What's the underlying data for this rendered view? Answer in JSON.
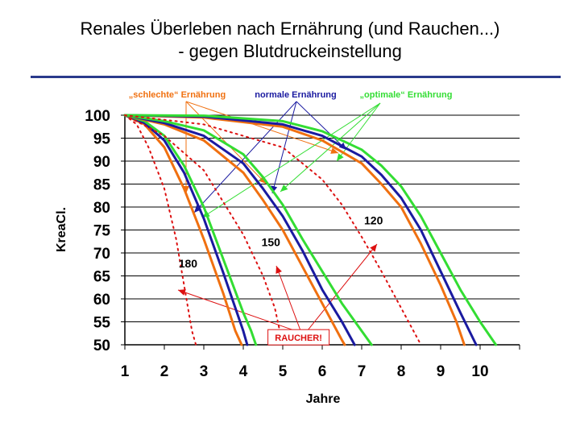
{
  "slide": {
    "title_line1": "Renales Überleben nach Ernährung (und Rauchen...)",
    "title_line2": "- gegen Blutdruckeinstellung"
  },
  "colors": {
    "rule": "#2a3a8c",
    "bad_diet": "#f07010",
    "normal_diet": "#1a1aa0",
    "optimal_diet": "#33dd33",
    "smoker": "#dd1111",
    "grid": "#000000"
  },
  "chart_data": {
    "type": "line",
    "xlabel": "Jahre",
    "ylabel": "KreaCl.",
    "xlim": [
      1,
      11
    ],
    "ylim": [
      50,
      100
    ],
    "x_ticks": [
      "1",
      "2",
      "3",
      "4",
      "5",
      "6",
      "7",
      "8",
      "9",
      "10"
    ],
    "y_ticks": [
      "100",
      "95",
      "90",
      "85",
      "80",
      "75",
      "70",
      "65",
      "60",
      "55",
      "50"
    ],
    "grid": "horizontal",
    "legend": [
      {
        "label": "„schlechte“ Ernährung",
        "color": "#f07010",
        "series": "schlecht"
      },
      {
        "label": "normale Ernährung",
        "color": "#1a1aa0",
        "series": "normal"
      },
      {
        "label": "„optimale“ Ernährung",
        "color": "#33dd33",
        "series": "optimal"
      }
    ],
    "group_labels": [
      {
        "text": "180",
        "x": 2.6,
        "y": 66.8
      },
      {
        "text": "150",
        "x": 4.7,
        "y": 71.5
      },
      {
        "text": "120",
        "x": 7.3,
        "y": 76.2
      }
    ],
    "annotation": {
      "text": "RAUCHER!",
      "x": 5.4,
      "y": 51.2
    },
    "series": [
      {
        "name": "180 schlecht",
        "diet": "schlecht",
        "group": "180",
        "points": [
          [
            1,
            100
          ],
          [
            1.5,
            98
          ],
          [
            2,
            93
          ],
          [
            2.5,
            84
          ],
          [
            3,
            73
          ],
          [
            3.5,
            61
          ],
          [
            3.8,
            53
          ],
          [
            3.96,
            50
          ]
        ]
      },
      {
        "name": "180 normal",
        "diet": "normal",
        "group": "180",
        "points": [
          [
            1,
            100
          ],
          [
            1.5,
            98.3
          ],
          [
            2,
            94.5
          ],
          [
            2.5,
            87.5
          ],
          [
            3,
            77.5
          ],
          [
            3.5,
            65.5
          ],
          [
            4,
            53
          ],
          [
            4.1,
            50
          ]
        ]
      },
      {
        "name": "180 optimal",
        "diet": "optimal",
        "group": "180",
        "points": [
          [
            1,
            100
          ],
          [
            1.5,
            98.7
          ],
          [
            2,
            95.5
          ],
          [
            2.5,
            89
          ],
          [
            3,
            80
          ],
          [
            3.5,
            68.5
          ],
          [
            4,
            57
          ],
          [
            4.2,
            53
          ],
          [
            4.32,
            50
          ]
        ]
      },
      {
        "name": "180 Raucher",
        "diet": "raucher",
        "group": "180",
        "points": [
          [
            1,
            100
          ],
          [
            1.3,
            98
          ],
          [
            1.6,
            93
          ],
          [
            2,
            84
          ],
          [
            2.3,
            73
          ],
          [
            2.5,
            63
          ],
          [
            2.7,
            53
          ],
          [
            2.8,
            50
          ]
        ]
      },
      {
        "name": "150 schlecht",
        "diet": "schlecht",
        "group": "150",
        "points": [
          [
            1,
            100
          ],
          [
            2,
            98
          ],
          [
            3,
            94.5
          ],
          [
            4,
            87.5
          ],
          [
            4.5,
            81.5
          ],
          [
            5,
            75
          ],
          [
            5.5,
            67
          ],
          [
            6,
            59
          ],
          [
            6.5,
            51
          ],
          [
            6.57,
            50
          ]
        ]
      },
      {
        "name": "150 normal",
        "diet": "normal",
        "group": "150",
        "points": [
          [
            1,
            100
          ],
          [
            2,
            98.3
          ],
          [
            3,
            95.5
          ],
          [
            4,
            89.5
          ],
          [
            4.5,
            84
          ],
          [
            5,
            78
          ],
          [
            5.5,
            70.5
          ],
          [
            6,
            62
          ],
          [
            6.5,
            55
          ],
          [
            6.82,
            50
          ]
        ]
      },
      {
        "name": "150 optimal",
        "diet": "optimal",
        "group": "150",
        "points": [
          [
            1,
            100
          ],
          [
            2,
            98.7
          ],
          [
            3,
            96.7
          ],
          [
            4,
            91.5
          ],
          [
            4.5,
            86.5
          ],
          [
            5,
            80.5
          ],
          [
            5.5,
            73
          ],
          [
            6,
            66
          ],
          [
            6.5,
            59
          ],
          [
            7,
            53
          ],
          [
            7.25,
            50
          ]
        ]
      },
      {
        "name": "150 Raucher",
        "diet": "raucher",
        "group": "150",
        "points": [
          [
            1,
            100
          ],
          [
            2,
            95.5
          ],
          [
            3,
            88
          ],
          [
            3.5,
            81
          ],
          [
            4,
            74
          ],
          [
            4.5,
            65
          ],
          [
            4.8,
            58
          ],
          [
            5,
            50
          ]
        ]
      },
      {
        "name": "120 schlecht",
        "diet": "schlecht",
        "group": "120",
        "points": [
          [
            1,
            100
          ],
          [
            3,
            99.5
          ],
          [
            5,
            97.5
          ],
          [
            6,
            94.5
          ],
          [
            7,
            89.5
          ],
          [
            7.5,
            85
          ],
          [
            8,
            80
          ],
          [
            8.5,
            72
          ],
          [
            9,
            63
          ],
          [
            9.4,
            55
          ],
          [
            9.6,
            50
          ]
        ]
      },
      {
        "name": "120 normal",
        "diet": "normal",
        "group": "120",
        "points": [
          [
            1,
            100
          ],
          [
            3,
            99.7
          ],
          [
            5,
            98
          ],
          [
            6,
            95.5
          ],
          [
            7,
            91
          ],
          [
            7.5,
            87
          ],
          [
            8,
            82
          ],
          [
            8.5,
            75
          ],
          [
            9,
            66
          ],
          [
            9.5,
            57
          ],
          [
            9.9,
            50
          ]
        ]
      },
      {
        "name": "120 optimal",
        "diet": "optimal",
        "group": "120",
        "points": [
          [
            1,
            100
          ],
          [
            3,
            99.9
          ],
          [
            5,
            98.7
          ],
          [
            6,
            96.5
          ],
          [
            7,
            92.5
          ],
          [
            7.5,
            89
          ],
          [
            8,
            84.5
          ],
          [
            8.5,
            78
          ],
          [
            9,
            70
          ],
          [
            9.5,
            62
          ],
          [
            10,
            55
          ],
          [
            10.4,
            50
          ]
        ]
      },
      {
        "name": "120 Raucher",
        "diet": "raucher",
        "group": "120",
        "points": [
          [
            1,
            100
          ],
          [
            3,
            98
          ],
          [
            5,
            93
          ],
          [
            6,
            86
          ],
          [
            6.5,
            80.5
          ],
          [
            7,
            73.5
          ],
          [
            7.5,
            66
          ],
          [
            8,
            58
          ],
          [
            8.5,
            50
          ]
        ]
      }
    ]
  }
}
